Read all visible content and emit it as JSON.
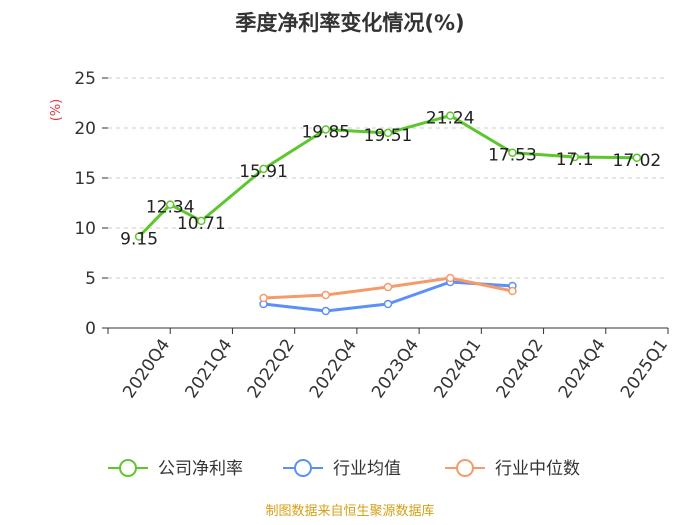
{
  "chart_data": {
    "type": "line",
    "title": "季度净利率变化情况(%)",
    "yunit": "(%)",
    "ylim": [
      0,
      25
    ],
    "yticks": [
      0,
      5,
      10,
      15,
      20,
      25
    ],
    "categories": [
      "2020Q4",
      "2021Q4",
      "2022Q2",
      "2022Q4",
      "2023Q4",
      "2024Q1",
      "2024Q2",
      "2024Q4",
      "2025Q1"
    ],
    "series": [
      {
        "name": "公司净利率",
        "color": "#5cc72d",
        "points": [
          {
            "x": 0.5,
            "y": 9.15,
            "label": "9.15"
          },
          {
            "x": 1.0,
            "y": 12.34,
            "label": "12.34"
          },
          {
            "x": 1.5,
            "y": 10.71,
            "label": "10.71"
          },
          {
            "x": 2.5,
            "y": 15.91,
            "label": "15.91"
          },
          {
            "x": 3.5,
            "y": 19.85,
            "label": "19.85"
          },
          {
            "x": 4.5,
            "y": 19.51,
            "label": "19.51"
          },
          {
            "x": 5.5,
            "y": 21.24,
            "label": "21.24"
          },
          {
            "x": 6.5,
            "y": 17.53,
            "label": "17.53"
          },
          {
            "x": 7.5,
            "y": 17.1,
            "label": "17.1"
          },
          {
            "x": 8.5,
            "y": 17.02,
            "label": "17.02"
          }
        ]
      },
      {
        "name": "行业均值",
        "color": "#5b8ff9",
        "points": [
          {
            "x": 2.5,
            "y": 2.4
          },
          {
            "x": 3.5,
            "y": 1.7
          },
          {
            "x": 4.5,
            "y": 2.4
          },
          {
            "x": 5.5,
            "y": 4.6
          },
          {
            "x": 6.5,
            "y": 4.2
          }
        ]
      },
      {
        "name": "行业中位数",
        "color": "#f79a6a",
        "points": [
          {
            "x": 2.5,
            "y": 3.0
          },
          {
            "x": 3.5,
            "y": 3.3
          },
          {
            "x": 4.5,
            "y": 4.1
          },
          {
            "x": 5.5,
            "y": 5.0
          },
          {
            "x": 6.5,
            "y": 3.7
          }
        ]
      }
    ],
    "legend_position": "bottom",
    "grid": "horizontal-dashed"
  },
  "footer": {
    "source": "制图数据来自恒生聚源数据库"
  }
}
